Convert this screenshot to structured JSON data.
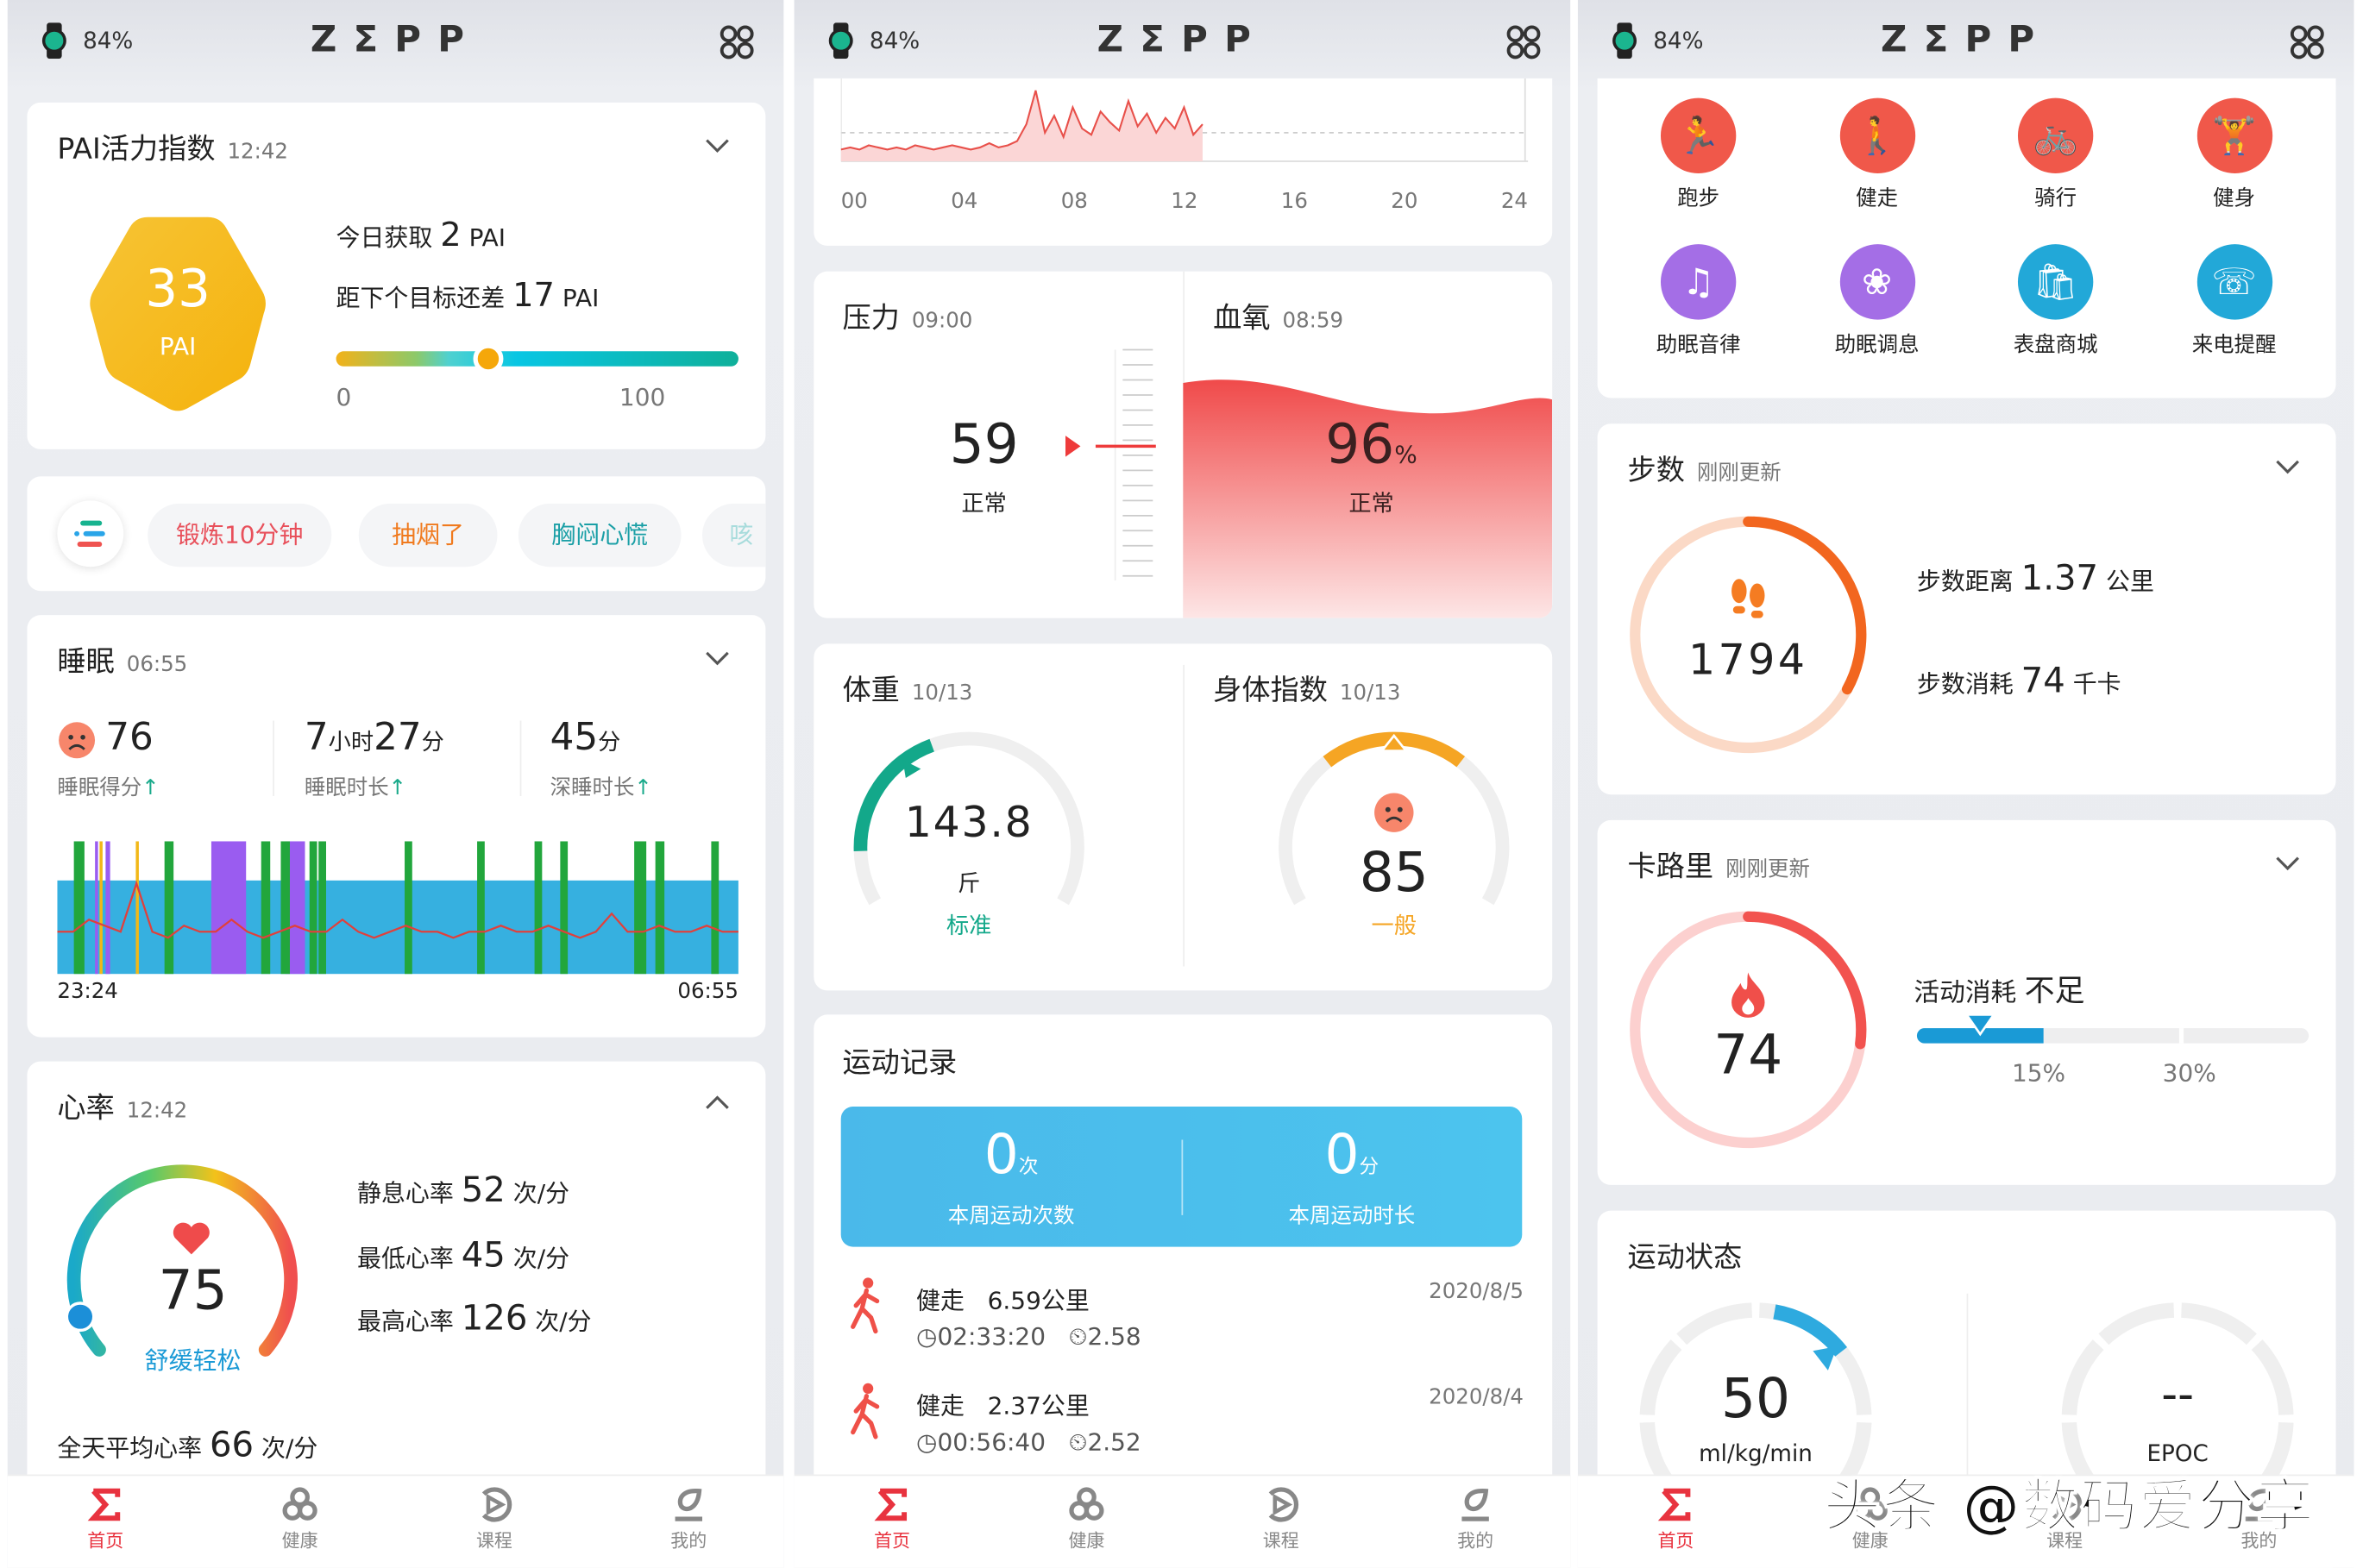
{
  "status": {
    "battery": "84%",
    "logo": "ZΣPP"
  },
  "nav": [
    {
      "label": "首页",
      "icon": "sigma-home-icon",
      "active": true
    },
    {
      "label": "健康",
      "icon": "health-icon"
    },
    {
      "label": "课程",
      "icon": "course-play-icon"
    },
    {
      "label": "我的",
      "icon": "profile-icon"
    }
  ],
  "pai": {
    "title": "PAI活力指数",
    "time": "12:42",
    "value": "33",
    "unit": "PAI",
    "today_label": "今日获取",
    "today_value": "2",
    "today_unit": "PAI",
    "goal_label": "距下个目标还差",
    "goal_value": "17",
    "goal_unit": "PAI",
    "scale_min": "0",
    "scale_max": "100",
    "progress": 0.38
  },
  "tags": {
    "items": [
      {
        "label": "锻炼10分钟",
        "color": "#e8505b"
      },
      {
        "label": "抽烟了",
        "color": "#f07a1e"
      },
      {
        "label": "胸闷心慌",
        "color": "#1a9fa6"
      },
      {
        "label": "咳",
        "color": "#a8dcdc"
      }
    ]
  },
  "sleep": {
    "title": "睡眠",
    "time": "06:55",
    "score": "76",
    "score_label": "睡眠得分",
    "dur_h": "7",
    "dur_h_unit": "小时",
    "dur_m": "27",
    "dur_m_unit": "分",
    "dur_label": "睡眠时长",
    "deep": "45",
    "deep_unit": "分",
    "deep_label": "深睡时长",
    "start": "23:24",
    "end": "06:55",
    "chart": {
      "colors": {
        "light": "#36b0e0",
        "awake": "#22a63c",
        "rem": "#9a5cf0",
        "out": "#f2b817",
        "hr": "#e0403c"
      },
      "awake": [
        [
          "23:35",
          "23:42"
        ],
        [
          "00:35",
          "00:41"
        ],
        [
          "01:39",
          "01:45"
        ],
        [
          "01:52",
          "01:58"
        ],
        [
          "02:11",
          "02:16"
        ],
        [
          "02:17",
          "02:22"
        ],
        [
          "03:14",
          "03:19"
        ],
        [
          "04:02",
          "04:07"
        ],
        [
          "04:40",
          "04:45"
        ],
        [
          "04:57",
          "05:02"
        ],
        [
          "05:46",
          "05:54"
        ],
        [
          "06:00",
          "06:06"
        ],
        [
          "06:37",
          "06:42"
        ]
      ],
      "rem": [
        [
          "23:49",
          "23:51"
        ],
        [
          "23:56",
          "23:59"
        ],
        [
          "01:06",
          "01:29"
        ],
        [
          "01:55",
          "02:08"
        ]
      ],
      "out": [
        [
          "23:52",
          "23:54"
        ],
        [
          "00:16",
          "00:17"
        ]
      ],
      "hr_trace": [
        50,
        50,
        52,
        51,
        50,
        58,
        50,
        49,
        51,
        50,
        50,
        52,
        50,
        49,
        50,
        51,
        50,
        50,
        52,
        50,
        49,
        50,
        51,
        50,
        50,
        49,
        50,
        50,
        51,
        50,
        50,
        51,
        50,
        49,
        50,
        53,
        50,
        50,
        51,
        50,
        50,
        51,
        50,
        50
      ]
    }
  },
  "hr": {
    "title": "心率",
    "time": "12:42",
    "value": "75",
    "status": "舒缓轻松",
    "rest_label": "静息心率",
    "rest": "52",
    "low_label": "最低心率",
    "low": "45",
    "high_label": "最高心率",
    "high": "126",
    "unit": "次/分",
    "avg_label": "全天平均心率",
    "avg": "66",
    "level": 0.02
  },
  "hr_day": {
    "ticks": [
      "00",
      "04",
      "08",
      "12",
      "16",
      "20",
      "24"
    ],
    "trace": [
      2,
      3,
      2,
      4,
      3,
      2,
      3,
      2,
      4,
      3,
      2,
      3,
      4,
      3,
      2,
      3,
      5,
      3,
      4,
      6,
      14,
      30,
      10,
      18,
      8,
      22,
      12,
      9,
      20,
      15,
      11,
      25,
      13,
      19,
      10,
      17,
      12,
      22,
      9,
      14
    ]
  },
  "stress": {
    "title": "压力",
    "time": "09:00",
    "value": "59",
    "status": "正常"
  },
  "spo2": {
    "title": "血氧",
    "time": "08:59",
    "value": "96",
    "unit": "%",
    "status": "正常"
  },
  "weight": {
    "title": "体重",
    "date": "10/13",
    "value": "143.8",
    "unit": "斤",
    "status": "标准",
    "color": "#13a88a"
  },
  "body": {
    "title": "身体指数",
    "date": "10/13",
    "value": "85",
    "status": "一般",
    "color": "#f5a524"
  },
  "workout": {
    "title": "运动记录",
    "count": "0",
    "count_unit": "次",
    "count_label": "本周运动次数",
    "dur": "0",
    "dur_unit": "分",
    "dur_label": "本周运动时长",
    "records": [
      {
        "type": "健走",
        "dist": "6.59公里",
        "date": "2020/8/5",
        "time": "02:33:20",
        "pace": "2.58"
      },
      {
        "type": "健走",
        "dist": "2.37公里",
        "date": "2020/8/4",
        "time": "00:56:40",
        "pace": "2.52"
      }
    ]
  },
  "shortcuts": [
    {
      "label": "跑步",
      "icon": "running-icon",
      "color": "#f0584a"
    },
    {
      "label": "健走",
      "icon": "walking-icon",
      "color": "#f0584a"
    },
    {
      "label": "骑行",
      "icon": "cycling-icon",
      "color": "#f0584a"
    },
    {
      "label": "健身",
      "icon": "fitness-icon",
      "color": "#f0584a"
    },
    {
      "label": "助眠音律",
      "icon": "music-note-icon",
      "color": "#a46ee6"
    },
    {
      "label": "助眠调息",
      "icon": "lotus-icon",
      "color": "#a46ee6"
    },
    {
      "label": "表盘商城",
      "icon": "shopping-bag-icon",
      "color": "#22a8d8"
    },
    {
      "label": "来电提醒",
      "icon": "phone-call-icon",
      "color": "#22a8d8"
    }
  ],
  "steps": {
    "title": "步数",
    "sub": "刚刚更新",
    "value": "1794",
    "dist_label": "步数距离",
    "dist": "1.37",
    "dist_unit": "公里",
    "cal_label": "步数消耗",
    "cal": "74",
    "cal_unit": "千卡",
    "progress": 0.33
  },
  "calories": {
    "title": "卡路里",
    "sub": "刚刚更新",
    "value": "74",
    "act_label": "活动消耗",
    "act_status": "不足",
    "mark1": "15%",
    "mark2": "30%",
    "progress": 0.27
  },
  "sport": {
    "title": "运动状态",
    "vo2": "50",
    "vo2_unit": "ml/kg/min",
    "epoc": "--",
    "epoc_label": "EPOC"
  },
  "watermark": "头条 @数码爱分享"
}
